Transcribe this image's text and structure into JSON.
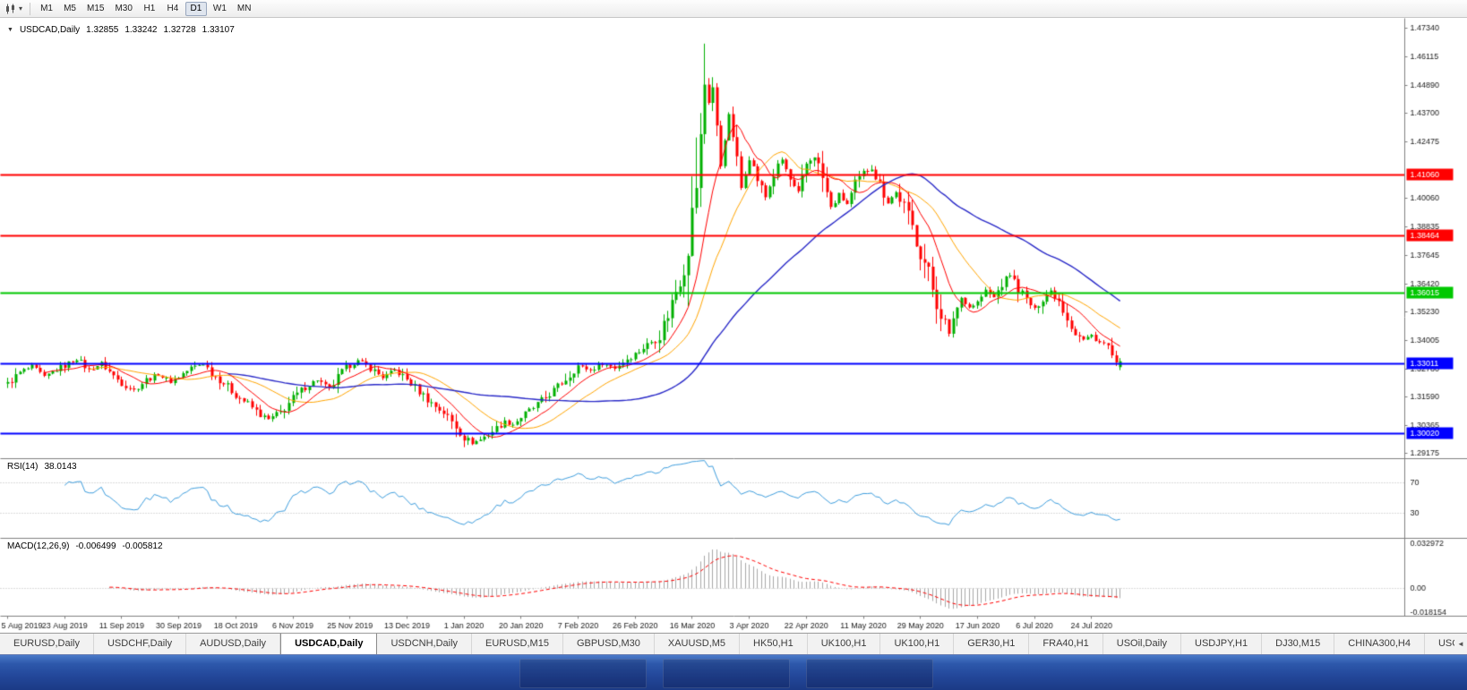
{
  "toolbar": {
    "timeframes": [
      {
        "label": "M1",
        "active": false
      },
      {
        "label": "M5",
        "active": false
      },
      {
        "label": "M15",
        "active": false
      },
      {
        "label": "M30",
        "active": false
      },
      {
        "label": "H1",
        "active": false
      },
      {
        "label": "H4",
        "active": false
      },
      {
        "label": "D1",
        "active": true
      },
      {
        "label": "W1",
        "active": false
      },
      {
        "label": "MN",
        "active": false
      }
    ]
  },
  "chart_header": {
    "title": "USDCAD,Daily",
    "open": "1.32855",
    "high": "1.33242",
    "low": "1.32728",
    "close": "1.33107"
  },
  "rsi_panel": {
    "name": "RSI(14)",
    "value": "38.0143"
  },
  "macd_panel": {
    "name": "MACD(12,26,9)",
    "main_value": "-0.006499",
    "signal_value": "-0.005812"
  },
  "tabs": [
    {
      "label": "EURUSD,Daily",
      "active": false
    },
    {
      "label": "USDCHF,Daily",
      "active": false
    },
    {
      "label": "AUDUSD,Daily",
      "active": false
    },
    {
      "label": "USDCAD,Daily",
      "active": true
    },
    {
      "label": "USDCNH,Daily",
      "active": false
    },
    {
      "label": "EURUSD,M15",
      "active": false
    },
    {
      "label": "GBPUSD,M30",
      "active": false
    },
    {
      "label": "XAUUSD,M5",
      "active": false
    },
    {
      "label": "HK50,H1",
      "active": false
    },
    {
      "label": "UK100,H1",
      "active": false
    },
    {
      "label": "UK100,H1",
      "active": false
    },
    {
      "label": "GER30,H1",
      "active": false
    },
    {
      "label": "FRA40,H1",
      "active": false
    },
    {
      "label": "USOil,Daily",
      "active": false
    },
    {
      "label": "USDJPY,H1",
      "active": false
    },
    {
      "label": "DJ30,M15",
      "active": false
    },
    {
      "label": "CHINA300,H4",
      "active": false
    },
    {
      "label": "USOil,H",
      "active": false
    }
  ],
  "chart_data": {
    "type": "candlestick",
    "symbol": "USDCAD",
    "timeframe": "Daily",
    "ohlc_last": {
      "open": 1.32855,
      "high": 1.33242,
      "low": 1.32728,
      "close": 1.33107
    },
    "num_candles": 274,
    "label_step": 14,
    "y_range": [
      1.29175,
      1.4734
    ],
    "y_axis_ticks": [
      "1.47340",
      "1.46115",
      "1.44890",
      "1.43700",
      "1.42475",
      "1.40060",
      "1.38835",
      "1.37645",
      "1.36420",
      "1.35230",
      "1.34005",
      "1.32780",
      "1.31590",
      "1.30365",
      "1.29175"
    ],
    "x_labels": [
      "5 Aug 2019",
      "23 Aug 2019",
      "11 Sep 2019",
      "30 Sep 2019",
      "18 Oct 2019",
      "6 Nov 2019",
      "25 Nov 2019",
      "13 Dec 2019",
      "1 Jan 2020",
      "20 Jan 2020",
      "7 Feb 2020",
      "26 Feb 2020",
      "16 Mar 2020",
      "3 Apr 2020",
      "22 Apr 2020",
      "11 May 2020",
      "29 May 2020",
      "17 Jun 2020",
      "6 Jul 2020",
      "24 Jul 2020"
    ],
    "levels": [
      {
        "price": 1.4106,
        "label": "1.41060",
        "color": "#FF0000"
      },
      {
        "price": 1.38464,
        "label": "1.38464",
        "color": "#FF0000"
      },
      {
        "price": 1.36015,
        "label": "1.36015",
        "color": "#00C800"
      },
      {
        "price": 1.33011,
        "label": "1.33011",
        "color": "#0000FF"
      },
      {
        "price": 1.3002,
        "label": "1.30020",
        "color": "#0000FF"
      }
    ],
    "macd_axis": [
      "0.032972",
      "0.00",
      "-0.018154"
    ],
    "colors": {
      "up": "#00B000",
      "down": "#FF0000",
      "background": "#FFFFFF",
      "axis_text": "#1a1a1a",
      "separator": "#808080"
    },
    "indicators": {
      "ma_fast": {
        "period": 10,
        "color": "#FF0000"
      },
      "ma_mid": {
        "period": 21,
        "color": "#FFA500"
      },
      "ma_slow": {
        "period": 55,
        "color": "#2A2AC8"
      },
      "rsi": {
        "period": 14,
        "color": "#3E9EDE",
        "levels": [
          70,
          30
        ],
        "last_value": 38.0143
      },
      "macd": {
        "fast": 12,
        "slow": 26,
        "signal_period": 9,
        "hist_color": "#A8A8A8",
        "signal_color": "#FF0000",
        "last_main": -0.006499,
        "last_signal": -0.005812
      }
    },
    "spike_high": {
      "index": 171,
      "price": 1.4668
    },
    "spike_low": {
      "index": 114,
      "price": 1.2952
    },
    "price_path": [
      [
        0,
        1.3215
      ],
      [
        3,
        1.3262
      ],
      [
        6,
        1.3288
      ],
      [
        9,
        1.3242
      ],
      [
        12,
        1.3276
      ],
      [
        14,
        1.3292
      ],
      [
        17,
        1.3322
      ],
      [
        20,
        1.3272
      ],
      [
        23,
        1.3302
      ],
      [
        26,
        1.3248
      ],
      [
        28,
        1.3218
      ],
      [
        31,
        1.3188
      ],
      [
        34,
        1.3232
      ],
      [
        37,
        1.3256
      ],
      [
        40,
        1.3222
      ],
      [
        42,
        1.3246
      ],
      [
        45,
        1.3282
      ],
      [
        48,
        1.3302
      ],
      [
        50,
        1.3262
      ],
      [
        53,
        1.3218
      ],
      [
        56,
        1.3168
      ],
      [
        59,
        1.3128
      ],
      [
        62,
        1.3082
      ],
      [
        64,
        1.3062
      ],
      [
        67,
        1.3092
      ],
      [
        70,
        1.3152
      ],
      [
        73,
        1.3202
      ],
      [
        76,
        1.3232
      ],
      [
        79,
        1.3192
      ],
      [
        82,
        1.3262
      ],
      [
        84,
        1.3296
      ],
      [
        86,
        1.3312
      ],
      [
        89,
        1.3282
      ],
      [
        92,
        1.3242
      ],
      [
        95,
        1.3272
      ],
      [
        98,
        1.3232
      ],
      [
        101,
        1.3182
      ],
      [
        104,
        1.3132
      ],
      [
        107,
        1.3092
      ],
      [
        110,
        1.3032
      ],
      [
        112,
        1.2986
      ],
      [
        114,
        1.2962
      ],
      [
        116,
        1.2976
      ],
      [
        119,
        1.3012
      ],
      [
        122,
        1.3052
      ],
      [
        124,
        1.3042
      ],
      [
        126,
        1.3072
      ],
      [
        129,
        1.3112
      ],
      [
        132,
        1.3156
      ],
      [
        135,
        1.3202
      ],
      [
        138,
        1.3252
      ],
      [
        140,
        1.3292
      ],
      [
        143,
        1.3272
      ],
      [
        146,
        1.3302
      ],
      [
        149,
        1.3282
      ],
      [
        152,
        1.3322
      ],
      [
        154,
        1.3342
      ],
      [
        157,
        1.3382
      ],
      [
        160,
        1.3422
      ],
      [
        163,
        1.3562
      ],
      [
        166,
        1.3722
      ],
      [
        168,
        1.3922
      ],
      [
        170,
        1.4242
      ],
      [
        171,
        1.4502
      ],
      [
        172,
        1.4422
      ],
      [
        173,
        1.4482
      ],
      [
        174,
        1.4302
      ],
      [
        175,
        1.4152
      ],
      [
        176,
        1.4262
      ],
      [
        177,
        1.4362
      ],
      [
        178,
        1.4282
      ],
      [
        179,
        1.4152
      ],
      [
        180,
        1.4052
      ],
      [
        182,
        1.4182
      ],
      [
        184,
        1.4092
      ],
      [
        186,
        1.4012
      ],
      [
        188,
        1.4112
      ],
      [
        190,
        1.4172
      ],
      [
        192,
        1.4082
      ],
      [
        194,
        1.4022
      ],
      [
        196,
        1.4152
      ],
      [
        198,
        1.4192
      ],
      [
        200,
        1.4092
      ],
      [
        202,
        1.3962
      ],
      [
        204,
        1.4022
      ],
      [
        206,
        1.3982
      ],
      [
        208,
        1.4062
      ],
      [
        210,
        1.4112
      ],
      [
        212,
        1.4142
      ],
      [
        214,
        1.4062
      ],
      [
        216,
        1.3992
      ],
      [
        218,
        1.4032
      ],
      [
        220,
        1.3972
      ],
      [
        222,
        1.3882
      ],
      [
        224,
        1.3782
      ],
      [
        226,
        1.3682
      ],
      [
        228,
        1.3562
      ],
      [
        230,
        1.3482
      ],
      [
        231,
        1.3422
      ],
      [
        232,
        1.3502
      ],
      [
        234,
        1.3582
      ],
      [
        236,
        1.3542
      ],
      [
        238,
        1.3562
      ],
      [
        240,
        1.3612
      ],
      [
        242,
        1.3582
      ],
      [
        244,
        1.3642
      ],
      [
        246,
        1.3682
      ],
      [
        248,
        1.3622
      ],
      [
        250,
        1.3572
      ],
      [
        252,
        1.3532
      ],
      [
        254,
        1.3582
      ],
      [
        256,
        1.3612
      ],
      [
        258,
        1.3572
      ],
      [
        260,
        1.3502
      ],
      [
        262,
        1.3432
      ],
      [
        264,
        1.3402
      ],
      [
        266,
        1.3422
      ],
      [
        268,
        1.3392
      ],
      [
        270,
        1.3372
      ],
      [
        271,
        1.3332
      ],
      [
        272,
        1.3292
      ],
      [
        273,
        1.33107
      ]
    ]
  }
}
